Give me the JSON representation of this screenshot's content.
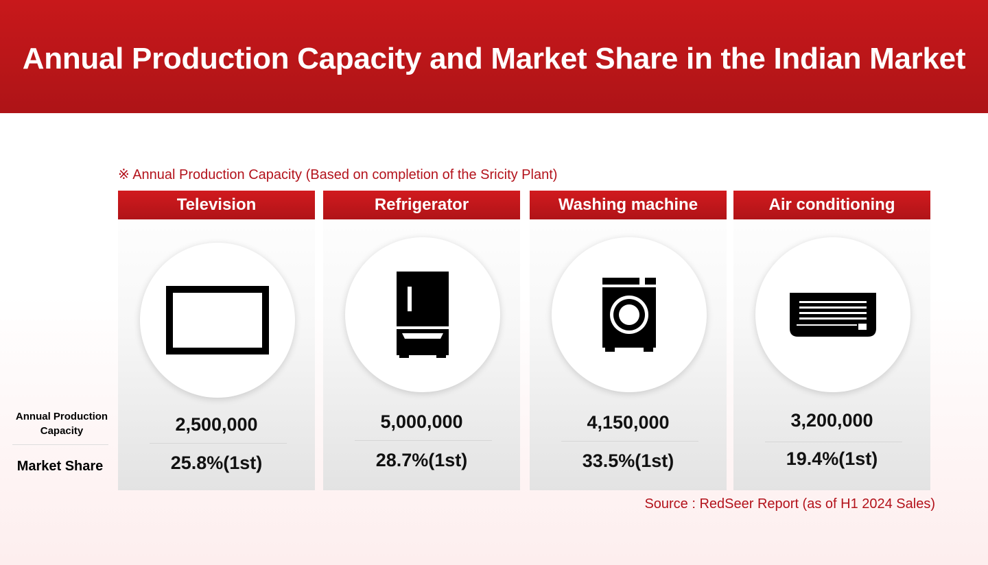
{
  "title": "Annual Production Capacity and Market Share in the Indian Market",
  "note": "※ Annual Production Capacity (Based on completion of the Sricity Plant)",
  "row_labels": {
    "capacity": "Annual Production Capacity",
    "share": "Market Share"
  },
  "categories": [
    {
      "name": "Television",
      "icon": "television-icon",
      "capacity": "2,500,000",
      "share": "25.8%(1st)"
    },
    {
      "name": "Refrigerator",
      "icon": "refrigerator-icon",
      "capacity": "5,000,000",
      "share": "28.7%(1st)"
    },
    {
      "name": "Washing machine",
      "icon": "washing-machine-icon",
      "capacity": "4,150,000",
      "share": "33.5%(1st)"
    },
    {
      "name": "Air conditioning",
      "icon": "air-conditioner-icon",
      "capacity": "3,200,000",
      "share": "19.4%(1st)"
    }
  ],
  "source": "Source : RedSeer Report (as of H1 2024 Sales)",
  "colors": {
    "brand_red": "#c8181b",
    "note_red": "#b3121b"
  }
}
